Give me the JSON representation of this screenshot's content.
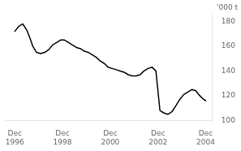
{
  "chart_data": {
    "type": "line",
    "ylabel": "'000 t",
    "x": [
      1996.917,
      1997.08,
      1997.25,
      1997.42,
      1997.58,
      1997.67,
      1997.83,
      1998.0,
      1998.17,
      1998.33,
      1998.5,
      1998.67,
      1998.83,
      1999.0,
      1999.17,
      1999.33,
      1999.5,
      1999.67,
      1999.83,
      2000.0,
      2000.17,
      2000.33,
      2000.5,
      2000.67,
      2000.83,
      2001.0,
      2001.17,
      2001.33,
      2001.5,
      2001.67,
      2001.83,
      2002.0,
      2002.17,
      2002.33,
      2002.5,
      2002.67,
      2002.83,
      2003.0,
      2003.17,
      2003.33,
      2003.5,
      2003.67,
      2003.83,
      2004.0,
      2004.17,
      2004.33,
      2004.5,
      2004.67,
      2004.83,
      2004.917
    ],
    "values": [
      172,
      176,
      178,
      173,
      165,
      160,
      155,
      154,
      155,
      157,
      161,
      163,
      165,
      165,
      163,
      161,
      159,
      158,
      156,
      155,
      153,
      151,
      148,
      146,
      143,
      142,
      141,
      140,
      139,
      137,
      136,
      136,
      137,
      140,
      142,
      143,
      140,
      108,
      106,
      105,
      107,
      112,
      117,
      121,
      123,
      125,
      124,
      120,
      117,
      116
    ],
    "color": "#000000",
    "xlim": [
      1996.5,
      2005.2
    ],
    "xticks": [
      {
        "value": 1996.917,
        "label": "Dec\n1996"
      },
      {
        "value": 1998.917,
        "label": "Dec\n1998"
      },
      {
        "value": 2000.917,
        "label": "Dec\n2000"
      },
      {
        "value": 2002.917,
        "label": "Dec\n2002"
      },
      {
        "value": 2004.917,
        "label": "Dec\n2004"
      }
    ],
    "ylim": [
      100,
      185
    ],
    "yticks": [
      100,
      120,
      140,
      160,
      180
    ],
    "grid": false
  }
}
